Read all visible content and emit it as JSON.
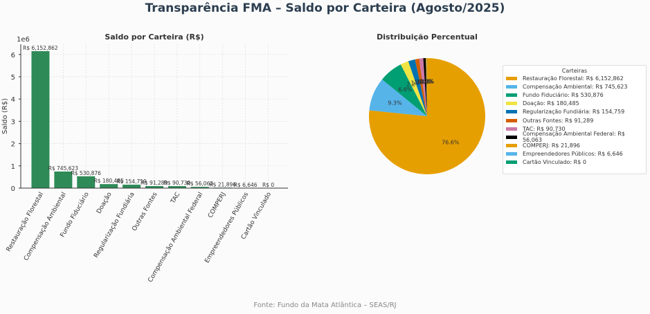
{
  "title": "Transparência FMA – Saldo por Carteira (Agosto/2025)",
  "footer": "Fonte: Fundo da Mata Atlântica – SEAS/RJ",
  "chart_data": [
    {
      "type": "bar",
      "title": "Saldo por Carteira (R$)",
      "xlabel": "",
      "ylabel": "Saldo (R$)",
      "y_offset_label": "1e6",
      "ylim": [
        0,
        6.46
      ],
      "yticks": [
        0,
        1,
        2,
        3,
        4,
        5,
        6
      ],
      "grid": true,
      "color": "#2e8b57",
      "categories": [
        "Restauração Florestal",
        "Compensação Ambiental",
        "Fundo Fiduciário",
        "Doação",
        "Regularização Fundiária",
        "Outras Fontes",
        "TAC",
        "Compensação Ambiental Federal",
        "COMPERJ",
        "Empreendedores Públicos",
        "Cartão Vinculado"
      ],
      "values": [
        6152862,
        745623,
        530876,
        180485,
        154759,
        91289,
        90730,
        56063,
        21896,
        6646,
        0
      ],
      "value_labels": [
        "R$ 6,152,862",
        "R$ 745,623",
        "R$ 530,876",
        "R$ 180,485",
        "R$ 154,759",
        "R$ 91,289",
        "R$ 90,730",
        "R$ 56,063",
        "R$ 21,896",
        "R$ 6,646",
        "R$ 0"
      ]
    },
    {
      "type": "pie",
      "title": "Distribuição Percentual",
      "legend_title": "Carteiras",
      "legend_position": "right",
      "labels": [
        "Restauração Florestal",
        "Compensação Ambiental",
        "Fundo Fiduciário",
        "Doação",
        "Regularização Fundiária",
        "Outras Fontes",
        "TAC",
        "Compensação Ambiental Federal",
        "COMPERJ",
        "Empreendedores Públicos",
        "Cartão Vinculado"
      ],
      "values": [
        6152862,
        745623,
        530876,
        180485,
        154759,
        91289,
        90730,
        56063,
        21896,
        6646,
        0
      ],
      "pct_labels": [
        "76.6%",
        "9.3%",
        "6.6%",
        "2.2%",
        "1.9%",
        "1.1%",
        "1.1%",
        "0.7%",
        "0.3%",
        "0.1%",
        "0.0%"
      ],
      "legend_entries": [
        "Restauração Florestal: R$ 6,152,862",
        "Compensação Ambiental: R$ 745,623",
        "Fundo Fiduciário: R$ 530,876",
        "Doação: R$ 180,485",
        "Regularização Fundiária: R$ 154,759",
        "Outras Fontes: R$ 91,289",
        "TAC: R$ 90,730",
        "Compensação Ambiental Federal: R$ 56,063",
        "COMPERJ: R$ 21,896",
        "Empreendedores Públicos: R$ 6,646",
        "Cartão Vinculado: R$ 0"
      ],
      "colors": [
        "#e69f00",
        "#56b4e9",
        "#009e73",
        "#f0e442",
        "#0072b2",
        "#d55e00",
        "#cc79a7",
        "#000000",
        "#e69f00",
        "#56b4e9",
        "#009e73"
      ]
    }
  ]
}
